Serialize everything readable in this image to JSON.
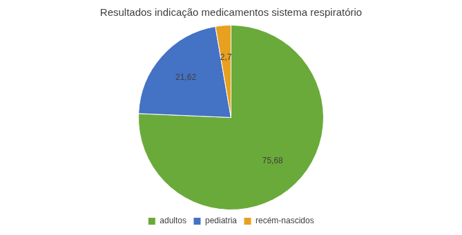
{
  "chart_data": {
    "type": "pie",
    "title": "Resultados indicação medicamentos sistema respiratório",
    "categories": [
      "adultos",
      "pediatria",
      "recém-nascidos"
    ],
    "values": [
      75.68,
      21.62,
      2.7
    ],
    "value_labels": [
      "75,68",
      "21,62",
      "2,7"
    ],
    "colors": [
      "#6aaa3a",
      "#4472c4",
      "#e8a020"
    ],
    "data_labels": true,
    "legend": "bottom"
  }
}
